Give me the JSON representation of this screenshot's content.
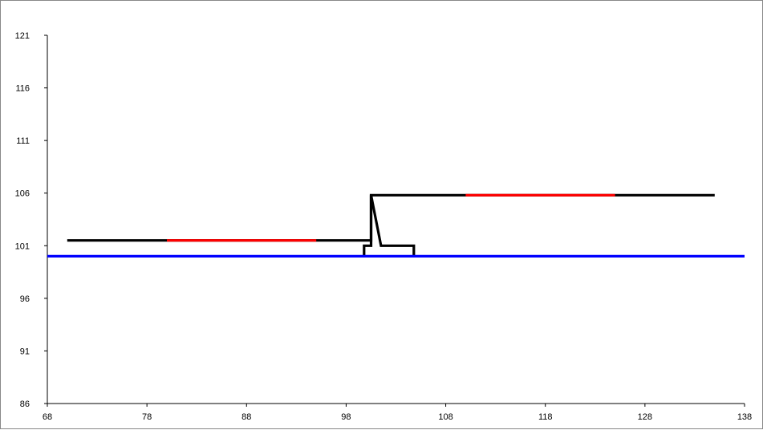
{
  "colors": {
    "black_series": "#000000",
    "red_highlight": "#ff0000",
    "blue_baseline": "#0000ff",
    "axis": "#000000"
  },
  "chart_data": {
    "type": "line",
    "title": "",
    "xlabel": "",
    "ylabel": "",
    "xlim": [
      68,
      138
    ],
    "ylim": [
      86,
      121
    ],
    "x_ticks": [
      68,
      78,
      88,
      98,
      108,
      118,
      128,
      138
    ],
    "y_ticks": [
      86,
      91,
      96,
      101,
      106,
      111,
      116,
      121
    ],
    "grid": false,
    "legend": "none",
    "series": [
      {
        "color": "#000000",
        "points": [
          [
            70,
            101.5
          ],
          [
            100.5,
            101.5
          ],
          [
            100.5,
            105.8
          ],
          [
            135,
            105.8
          ]
        ]
      },
      {
        "color": "#000000",
        "points": [
          [
            99.8,
            100.0
          ],
          [
            99.8,
            101.0
          ],
          [
            100.5,
            101.0
          ],
          [
            100.5,
            105.8
          ],
          [
            101.5,
            101.0
          ],
          [
            104.8,
            101.0
          ],
          [
            104.8,
            100.0
          ]
        ]
      },
      {
        "color": "#ff0000",
        "points": [
          [
            80,
            101.5
          ],
          [
            95,
            101.5
          ]
        ]
      },
      {
        "color": "#ff0000",
        "points": [
          [
            110,
            105.8
          ],
          [
            125,
            105.8
          ]
        ]
      },
      {
        "color": "#0000ff",
        "points": [
          [
            68,
            100.0
          ],
          [
            138,
            100.0
          ]
        ]
      }
    ]
  }
}
